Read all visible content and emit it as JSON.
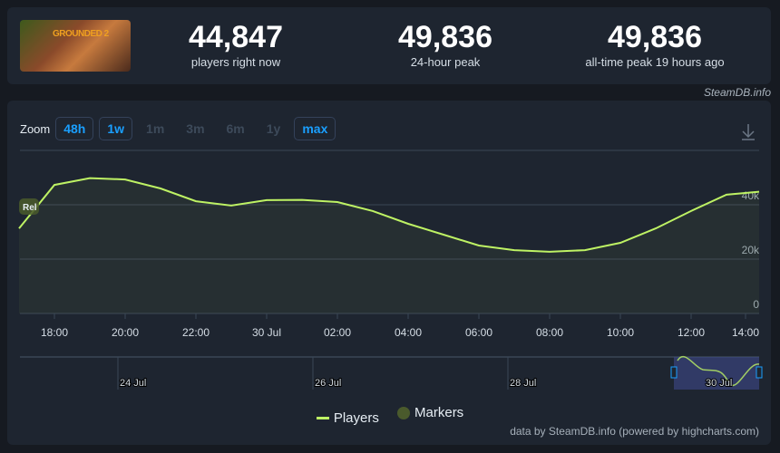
{
  "header": {
    "game_logo_text": "GROUNDED 2",
    "stats": [
      {
        "value": "44,847",
        "label": "players right now"
      },
      {
        "value": "49,836",
        "label": "24-hour peak"
      },
      {
        "value": "49,836",
        "label": "all-time peak 19 hours ago"
      }
    ],
    "credit": "SteamDB.info"
  },
  "zoom": {
    "label": "Zoom",
    "buttons": [
      {
        "label": "48h",
        "active": true
      },
      {
        "label": "1w",
        "active": true
      },
      {
        "label": "1m",
        "active": false
      },
      {
        "label": "3m",
        "active": false
      },
      {
        "label": "6m",
        "active": false
      },
      {
        "label": "1y",
        "active": false
      },
      {
        "label": "max",
        "active": true
      }
    ],
    "download_icon": "download-icon"
  },
  "chart_data": {
    "type": "area",
    "x": [
      "17:00",
      "18:00",
      "19:00",
      "20:00",
      "21:00",
      "22:00",
      "23:00",
      "30 Jul",
      "01:00",
      "02:00",
      "03:00",
      "04:00",
      "05:00",
      "06:00",
      "07:00",
      "08:00",
      "09:00",
      "10:00",
      "11:00",
      "12:00",
      "13:00",
      "14:00"
    ],
    "series": [
      {
        "name": "Players",
        "color": "#bef264",
        "values": [
          31300,
          47300,
          49800,
          49300,
          46000,
          41300,
          39700,
          41700,
          41800,
          41000,
          37700,
          33000,
          29000,
          25000,
          23300,
          22700,
          23300,
          26000,
          31300,
          37700,
          43700,
          44800
        ]
      }
    ],
    "x_tick_labels": [
      "18:00",
      "20:00",
      "22:00",
      "30 Jul",
      "02:00",
      "04:00",
      "06:00",
      "08:00",
      "10:00",
      "12:00",
      "14:00"
    ],
    "y_tick_labels": [
      "0",
      "20k",
      "40k"
    ],
    "ylim": [
      0,
      60000
    ],
    "grid": true,
    "marker_label": "Rel",
    "navigator_labels": [
      "24 Jul",
      "26 Jul",
      "28 Jul",
      "30 Jul"
    ],
    "legend": [
      {
        "label": "Players",
        "color": "#bef264"
      },
      {
        "label": "Markers",
        "color": "#4a5a2c"
      }
    ],
    "legend_position": "bottom"
  },
  "footer": {
    "credit": "data by SteamDB.info (powered by highcharts.com)"
  }
}
